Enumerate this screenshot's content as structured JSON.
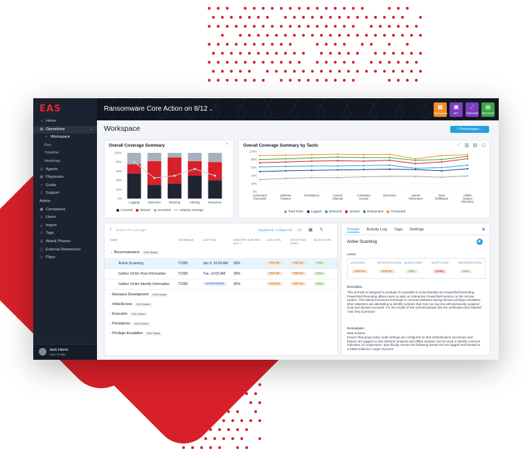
{
  "app": {
    "logo": "EAS",
    "title": "Ransomware Core Action on 8/12",
    "title_caret": "⌄",
    "header_buttons": [
      {
        "label": "Workspace",
        "color": "#f28c28"
      },
      {
        "label": "MIT",
        "color": "#7b3fbf"
      },
      {
        "label": "TIMELINE",
        "color": "#7b3fbf"
      },
      {
        "label": "HEATMAP",
        "color": "#3ca34a"
      }
    ]
  },
  "sidebar": {
    "items": [
      {
        "label": "Home",
        "icon": "home-icon",
        "glyph": "⌂"
      },
      {
        "label": "Operations",
        "icon": "grid-icon",
        "glyph": "▦",
        "active": true,
        "chevron": "⌄"
      },
      {
        "label": "Workspace",
        "sub": true,
        "on": true,
        "glyph": "•"
      },
      {
        "label": "Run",
        "sub": true
      },
      {
        "label": "Timeline",
        "sub": true
      },
      {
        "label": "Heatmap",
        "sub": true
      },
      {
        "label": "Agents",
        "icon": "agent-icon",
        "glyph": "◎"
      },
      {
        "label": "Playbooks",
        "icon": "book-icon",
        "glyph": "▤"
      },
      {
        "label": "Guide",
        "icon": "guide-icon",
        "glyph": "○"
      },
      {
        "label": "Support",
        "icon": "support-icon",
        "glyph": "□"
      },
      {
        "label": "Admin",
        "header": true
      },
      {
        "label": "Companies",
        "icon": "company-icon",
        "glyph": "▣"
      },
      {
        "label": "Users",
        "icon": "users-icon",
        "glyph": "☺"
      },
      {
        "label": "Import",
        "icon": "import-icon",
        "glyph": "⤓"
      },
      {
        "label": "Tags",
        "icon": "tag-icon",
        "glyph": "◇"
      },
      {
        "label": "Attack Phases",
        "icon": "phase-icon",
        "glyph": "◎"
      },
      {
        "label": "External References",
        "icon": "link-icon",
        "glyph": "▢"
      },
      {
        "label": "Plays",
        "icon": "play-icon",
        "glyph": "▷"
      }
    ],
    "user": {
      "name": "Jack Harris",
      "link": "View Profile"
    }
  },
  "workspace": {
    "title": "Workspace",
    "percentages_btn": "▽ Percentages ⌄"
  },
  "chart_data": [
    {
      "type": "bar",
      "title": "Overall Coverage Summary",
      "categories": [
        "Logging",
        "Detection",
        "Blocking",
        "Alerting",
        "Response"
      ],
      "stacked": true,
      "series": [
        {
          "name": "Covered",
          "color": "#1f2530",
          "values": [
            55,
            30,
            33,
            50,
            40
          ]
        },
        {
          "name": "Missed",
          "color": "#d8202a",
          "values": [
            20,
            52,
            57,
            32,
            40
          ]
        },
        {
          "name": "Untested",
          "color": "#a7b0be",
          "values": [
            25,
            18,
            10,
            18,
            20
          ]
        }
      ],
      "line": {
        "name": "Industry Average",
        "values": [
          80,
          45,
          50,
          65,
          50
        ]
      },
      "ylim": [
        0,
        100
      ],
      "yticks": [
        "100%",
        "80%",
        "60%",
        "40%",
        "20%",
        "0%"
      ],
      "legend": [
        "Covered",
        "Missed",
        "Untested",
        "Industry Average"
      ],
      "legend_placement": "bottom"
    },
    {
      "type": "line",
      "title": "Overall Coverage Summary by Tactic",
      "categories": [
        "Command Execution",
        "Defense Evasion",
        "Persistence",
        "Control Channel",
        "Credential Access",
        "Discovery",
        "Lateral Movement",
        "Data Exfiltration",
        "Inhibit System Recovery"
      ],
      "series": [
        {
          "name": "Total Tests",
          "color": "#9aa4b2",
          "values": [
            30,
            33,
            35,
            35,
            37,
            38,
            38,
            36,
            39
          ]
        },
        {
          "name": "Logged",
          "color": "#1e3a8a",
          "values": [
            50,
            52,
            53,
            54,
            55,
            56,
            55,
            52,
            57
          ]
        },
        {
          "name": "Detected",
          "color": "#1fa0e0",
          "values": [
            62,
            63,
            64,
            64,
            65,
            66,
            58,
            60,
            66
          ]
        },
        {
          "name": "Alerted",
          "color": "#d8202a",
          "values": [
            72,
            74,
            76,
            77,
            76,
            78,
            70,
            74,
            82
          ]
        },
        {
          "name": "Responded",
          "color": "#3ca34a",
          "values": [
            80,
            82,
            84,
            86,
            85,
            85,
            78,
            80,
            88
          ]
        },
        {
          "name": "Prevented",
          "color": "#f28c28",
          "values": [
            90,
            91,
            92,
            93,
            92,
            93,
            82,
            90,
            92
          ]
        }
      ],
      "ylim": [
        0,
        100
      ],
      "yticks": [
        "100%",
        "80%",
        "60%",
        "40%",
        "20%",
        "0%"
      ],
      "legend_placement": "bottom"
    }
  ],
  "table": {
    "search_placeholder": "Search TTP Coverage",
    "expand_all": "Expand All",
    "separator": "|",
    "collapse_all": "Collapse All",
    "headers": [
      "NAME",
      "TECHNIQUE",
      "LAST RAN",
      "INDUSTRY ALERTING AVG ⓘ",
      "LOG LEVEL",
      "DETECTION LEVEL",
      "BLOCK LEVEL"
    ],
    "groups": [
      {
        "name": "Reconnaissance",
        "tag": "3/26 Tested",
        "expanded": true
      },
      {
        "name": "Resource Development",
        "tag": "0/28 Tested"
      },
      {
        "name": "Initial Access",
        "tag": "0/26 Tested"
      },
      {
        "name": "Execution",
        "tag": "0/26 Tested"
      },
      {
        "name": "Persistence",
        "tag": "0/26 Tested"
      },
      {
        "name": "Privilege Escalation",
        "tag": "0/26 Tested"
      }
    ],
    "rows": [
      {
        "name": "Active Scanning",
        "technique": "T1595",
        "last_ran": "Jan 9, 10:00 AM",
        "avg": "30%",
        "log": "PARTIAL",
        "detect": "PARTIAL",
        "block": "FULL",
        "selected": true
      },
      {
        "name": "Gather Victim Host Information",
        "technique": "T1595",
        "last_ran": "Tue, 10:00 AM",
        "avg": "30%",
        "log": "PARTIAL",
        "detect": "PARTIAL",
        "block": "FULL"
      },
      {
        "name": "Gather Victim Identity Information",
        "technique": "T1595",
        "last_ran": "IN PROGRESS",
        "avg": "45%",
        "log": "PARTIAL",
        "detect": "PARTIAL",
        "block": "FULL",
        "in_progress": true
      }
    ]
  },
  "details": {
    "tabs": [
      "Details",
      "Activity Log",
      "Tags",
      "Settings"
    ],
    "close": "✕",
    "title": "Active Scanning",
    "levels_label": "Levels",
    "levels": [
      {
        "header": "LOG LEVEL",
        "value": "PARTIAL",
        "kind": "partial"
      },
      {
        "header": "DETECTION LEVEL",
        "value": "PARTIAL",
        "kind": "partial"
      },
      {
        "header": "BLOCK LEVEL",
        "value": "FULL",
        "kind": "full"
      },
      {
        "header": "ALERT LEVEL",
        "value": "NONE",
        "kind": "none"
      },
      {
        "header": "RESPONSE LEVEL",
        "value": "FULL",
        "kind": "full"
      }
    ],
    "description_label": "Description",
    "description": "This unit test is designed to evaluate if it possible to move laterally via PowerShell Remoting. PowerShell Remoting allows users to open an interactive PowerShell session on the remote system. This lateral movement technique is common behavior during domain privilege escalation when attackers are attempting to identify systems that may can log into with previously acquired local and domain accounts. For the results of this unit test please see the verification item labeled \"Unit Test Summary\".",
    "remediation_label": "Remediation",
    "data_solution_label": "Data Solution",
    "remediation": "Ensure that group policy audit settings are configured so that authentication successes and failures are logged so that real-time analysis and offline analysis can be used to identify common indicators of compromise. Specifically, ensure the following events IDs are logged and forward to a SIEM solutions: Logon Success"
  }
}
